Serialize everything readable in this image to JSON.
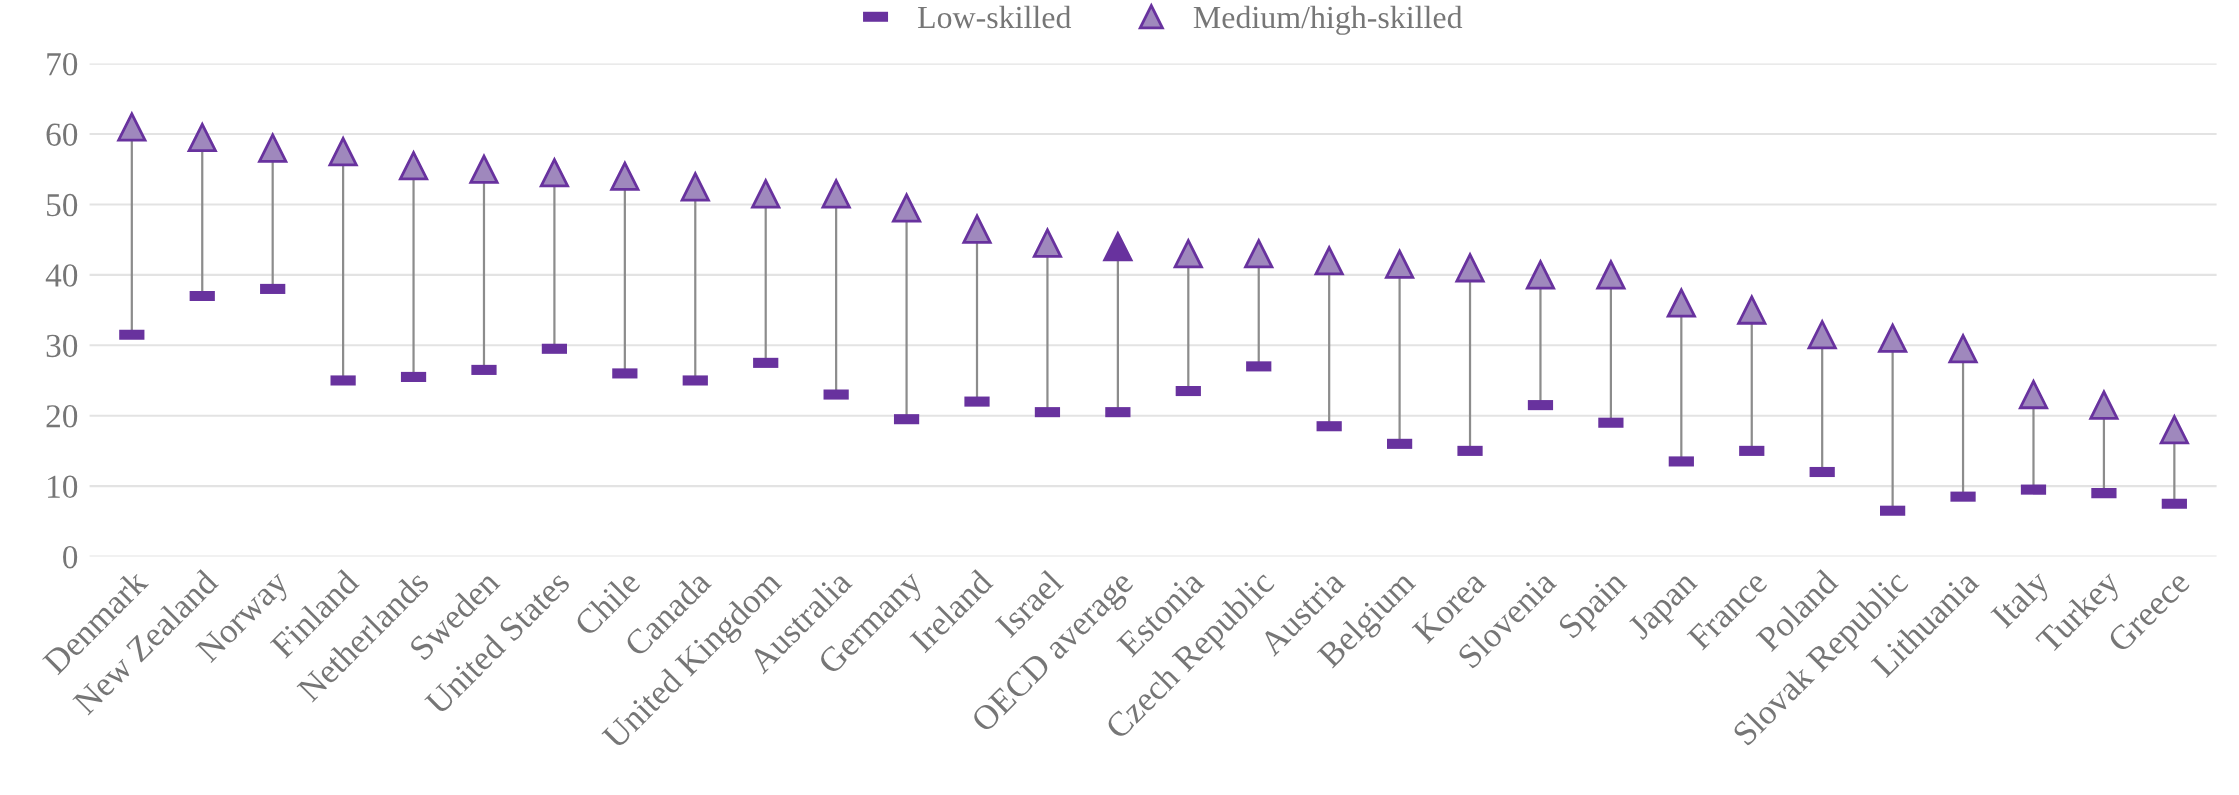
{
  "chart_data": {
    "type": "scatter",
    "categories": [
      "Denmark",
      "New Zealand",
      "Norway",
      "Finland",
      "Netherlands",
      "Sweden",
      "United States",
      "Chile",
      "Canada",
      "United Kingdom",
      "Australia",
      "Germany",
      "Ireland",
      "Israel",
      "OECD average",
      "Estonia",
      "Czech Republic",
      "Austria",
      "Belgium",
      "Korea",
      "Slovenia",
      "Spain",
      "Japan",
      "France",
      "Poland",
      "Slovak Republic",
      "Lithuania",
      "Italy",
      "Turkey",
      "Greece"
    ],
    "series": [
      {
        "name": "Low-skilled",
        "color": "#68329e",
        "values": [
          31.5,
          37,
          38,
          25,
          25.5,
          26.5,
          29.5,
          26,
          25,
          27.5,
          23,
          19.5,
          22,
          20.5,
          20.5,
          23.5,
          27,
          18.5,
          16,
          15,
          21.5,
          19,
          13.5,
          15,
          12,
          6.5,
          8.5,
          9.5,
          9,
          7.5
        ]
      },
      {
        "name": "Medium/high-skilled",
        "color": "#9f88bd",
        "marker": "triangle",
        "colors": [
          "#9f88bd",
          "#9f88bd",
          "#9f88bd",
          "#9f88bd",
          "#9f88bd",
          "#9f88bd",
          "#9f88bd",
          "#9f88bd",
          "#9f88bd",
          "#9f88bd",
          "#9f88bd",
          "#9f88bd",
          "#9f88bd",
          "#9f88bd",
          "#68329e",
          "#9f88bd",
          "#9f88bd",
          "#9f88bd",
          "#9f88bd",
          "#9f88bd",
          "#9f88bd",
          "#9f88bd",
          "#9f88bd",
          "#9f88bd",
          "#9f88bd",
          "#9f88bd",
          "#9f88bd",
          "#9f88bd",
          "#9f88bd",
          "#9f88bd"
        ],
        "values": [
          61,
          59.5,
          58,
          57.5,
          55.5,
          55,
          54.5,
          54,
          52.5,
          51.5,
          51.5,
          49.5,
          46.5,
          44.5,
          44,
          43,
          43,
          42,
          41.5,
          41,
          40,
          40,
          36,
          35,
          31.5,
          31,
          29.5,
          23,
          21.5,
          18
        ]
      }
    ],
    "ylim": [
      0,
      70
    ],
    "yticks": [
      0,
      10,
      20,
      30,
      40,
      50,
      60,
      70
    ],
    "grid": "y",
    "legend": "top"
  }
}
